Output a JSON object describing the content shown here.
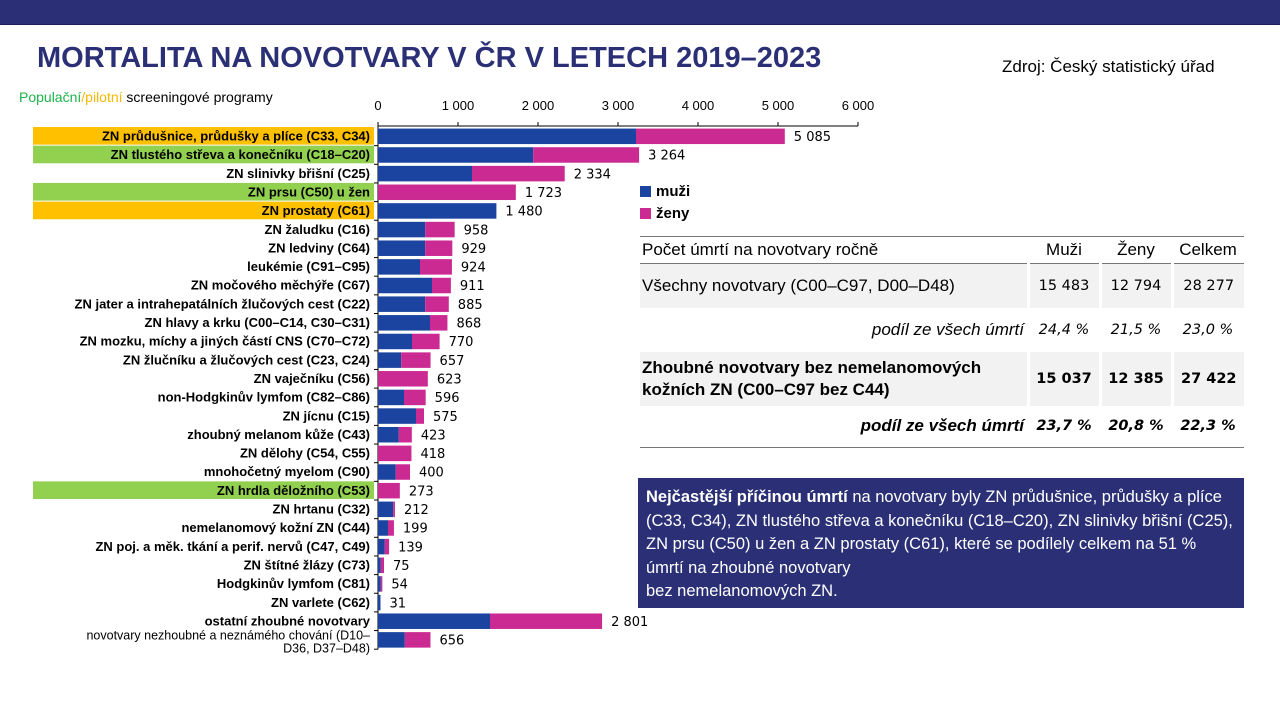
{
  "header": {
    "title": "MORTALITA NA NOVOTVARY V ČR V LETECH 2019–2023",
    "source": "Zdroj: Český statistický úřad",
    "screening_note": {
      "population": "Populační",
      "slash": "/",
      "pilot": "pilotní",
      "rest": " screeningové programy"
    }
  },
  "colors": {
    "brand": "#2b3076",
    "men": "#1a44a0",
    "women": "#cc2a93",
    "screening_population": "#92d050",
    "screening_pilot": "#ffc000"
  },
  "legend": {
    "men": "muži",
    "women": "ženy"
  },
  "chart_data": {
    "type": "bar",
    "orientation": "horizontal",
    "stacked": true,
    "xlim": [
      0,
      6000
    ],
    "xticks": [
      0,
      1000,
      2000,
      3000,
      4000,
      5000,
      6000
    ],
    "xtick_labels": [
      "0",
      "1 000",
      "2 000",
      "3 000",
      "4 000",
      "5 000",
      "6 000"
    ],
    "legend_position": "right",
    "categories": [
      {
        "label": "ZN průdušnice, průdušky a plíce (C33, C34)",
        "screening": "pilot",
        "men": 3225,
        "women": 1860,
        "total": 5085,
        "total_label": "5 085"
      },
      {
        "label": "ZN tlustého střeva a konečníku (C18–C20)",
        "screening": "population",
        "men": 1940,
        "women": 1324,
        "total": 3264,
        "total_label": "3 264"
      },
      {
        "label": "ZN slinivky břišní (C25)",
        "screening": "",
        "men": 1175,
        "women": 1159,
        "total": 2334,
        "total_label": "2 334"
      },
      {
        "label": "ZN prsu (C50) u žen",
        "screening": "population",
        "men": 0,
        "women": 1723,
        "total": 1723,
        "total_label": "1 723"
      },
      {
        "label": "ZN prostaty (C61)",
        "screening": "pilot",
        "men": 1480,
        "women": 0,
        "total": 1480,
        "total_label": "1 480"
      },
      {
        "label": "ZN žaludku (C16)",
        "screening": "",
        "men": 590,
        "women": 368,
        "total": 958,
        "total_label": "958"
      },
      {
        "label": "ZN ledviny (C64)",
        "screening": "",
        "men": 590,
        "women": 339,
        "total": 929,
        "total_label": "929"
      },
      {
        "label": "leukémie (C91–C95)",
        "screening": "",
        "men": 525,
        "women": 399,
        "total": 924,
        "total_label": "924"
      },
      {
        "label": "ZN močového měchýře (C67)",
        "screening": "",
        "men": 675,
        "women": 236,
        "total": 911,
        "total_label": "911"
      },
      {
        "label": "ZN jater a intrahepatálních žlučových cest (C22)",
        "screening": "",
        "men": 590,
        "women": 295,
        "total": 885,
        "total_label": "885"
      },
      {
        "label": "ZN hlavy a krku (C00–C14, C30–C31)",
        "screening": "",
        "men": 650,
        "women": 218,
        "total": 868,
        "total_label": "868"
      },
      {
        "label": "ZN mozku, míchy a jiných částí CNS (C70–C72)",
        "screening": "",
        "men": 425,
        "women": 345,
        "total": 770,
        "total_label": "770"
      },
      {
        "label": "ZN žlučníku a žlučových cest (C23, C24)",
        "screening": "",
        "men": 290,
        "women": 367,
        "total": 657,
        "total_label": "657"
      },
      {
        "label": "ZN vaječníku (C56)",
        "screening": "",
        "men": 0,
        "women": 623,
        "total": 623,
        "total_label": "623"
      },
      {
        "label": "non-Hodgkinův lymfom (C82–C86)",
        "screening": "",
        "men": 325,
        "women": 271,
        "total": 596,
        "total_label": "596"
      },
      {
        "label": "ZN jícnu (C15)",
        "screening": "",
        "men": 475,
        "women": 100,
        "total": 575,
        "total_label": "575"
      },
      {
        "label": "zhoubný melanom kůže (C43)",
        "screening": "",
        "men": 260,
        "women": 163,
        "total": 423,
        "total_label": "423"
      },
      {
        "label": "ZN dělohy (C54, C55)",
        "screening": "",
        "men": 0,
        "women": 418,
        "total": 418,
        "total_label": "418"
      },
      {
        "label": "mnohočetný myelom (C90)",
        "screening": "",
        "men": 220,
        "women": 180,
        "total": 400,
        "total_label": "400"
      },
      {
        "label": "ZN hrdla děložního (C53)",
        "screening": "population",
        "men": 0,
        "women": 273,
        "total": 273,
        "total_label": "273"
      },
      {
        "label": "ZN hrtanu (C32)",
        "screening": "",
        "men": 190,
        "women": 22,
        "total": 212,
        "total_label": "212"
      },
      {
        "label": "nemelanomový kožní ZN (C44)",
        "screening": "",
        "men": 125,
        "women": 74,
        "total": 199,
        "total_label": "199"
      },
      {
        "label": "ZN poj. a měk. tkání a perif. nervů (C47, C49)",
        "screening": "",
        "men": 85,
        "women": 54,
        "total": 139,
        "total_label": "139"
      },
      {
        "label": "ZN štítné žlázy (C73)",
        "screening": "",
        "men": 35,
        "women": 40,
        "total": 75,
        "total_label": "75"
      },
      {
        "label": "Hodgkinův lymfom (C81)",
        "screening": "",
        "men": 35,
        "women": 19,
        "total": 54,
        "total_label": "54"
      },
      {
        "label": "ZN varlete (C62)",
        "screening": "",
        "men": 31,
        "women": 0,
        "total": 31,
        "total_label": "31"
      },
      {
        "label": "ostatní zhoubné novotvary",
        "screening": "",
        "men": 1400,
        "women": 1401,
        "total": 2801,
        "total_label": "2 801"
      },
      {
        "label": "novotvary nezhoubné a neznámého chování (D10–D36, D37–D48)",
        "screening": "",
        "style": "normal",
        "men": 335,
        "women": 321,
        "total": 656,
        "total_label": "656"
      }
    ]
  },
  "stats_table": {
    "headers": [
      "Počet úmrtí na novotvary ročně",
      "Muži",
      "Ženy",
      "Celkem"
    ],
    "all": {
      "label": "Všechny novotvary (C00–C97, D00–D48)",
      "men": "15 483",
      "women": "12 794",
      "total": "28 277"
    },
    "all_share": {
      "label": "podíl ze všech úmrtí",
      "men": "24,4 %",
      "women": "21,5 %",
      "total": "23,0 %"
    },
    "malignant": {
      "label_bold_1": "Z",
      "label_1": "houbné novotvary bez nemelanomových",
      "label_2a": "kožních ",
      "label_2b": "ZN",
      "label_2c": " (C00–C97 bez C44)",
      "men": "15 037",
      "women": "12 385",
      "total": "27 422"
    },
    "malignant_share": {
      "label": "podíl ze všech úmrtí",
      "men": "23,7 %",
      "women": "20,8 %",
      "total": "22,3 %"
    }
  },
  "info_box": {
    "bold": "Nejčastější příčinou úmrtí",
    "text": " na novotvary byly ZN průdušnice, průdušky a plíce (C33, C34), ZN tlustého střeva a konečníku (C18–C20), ZN slinivky břišní (C25), ZN prsu (C50) u žen a ZN prostaty (C61), které se podílely celkem na 51 % úmrtí na zhoubné novotvary",
    "last_line": "bez nemelanomových ZN."
  }
}
